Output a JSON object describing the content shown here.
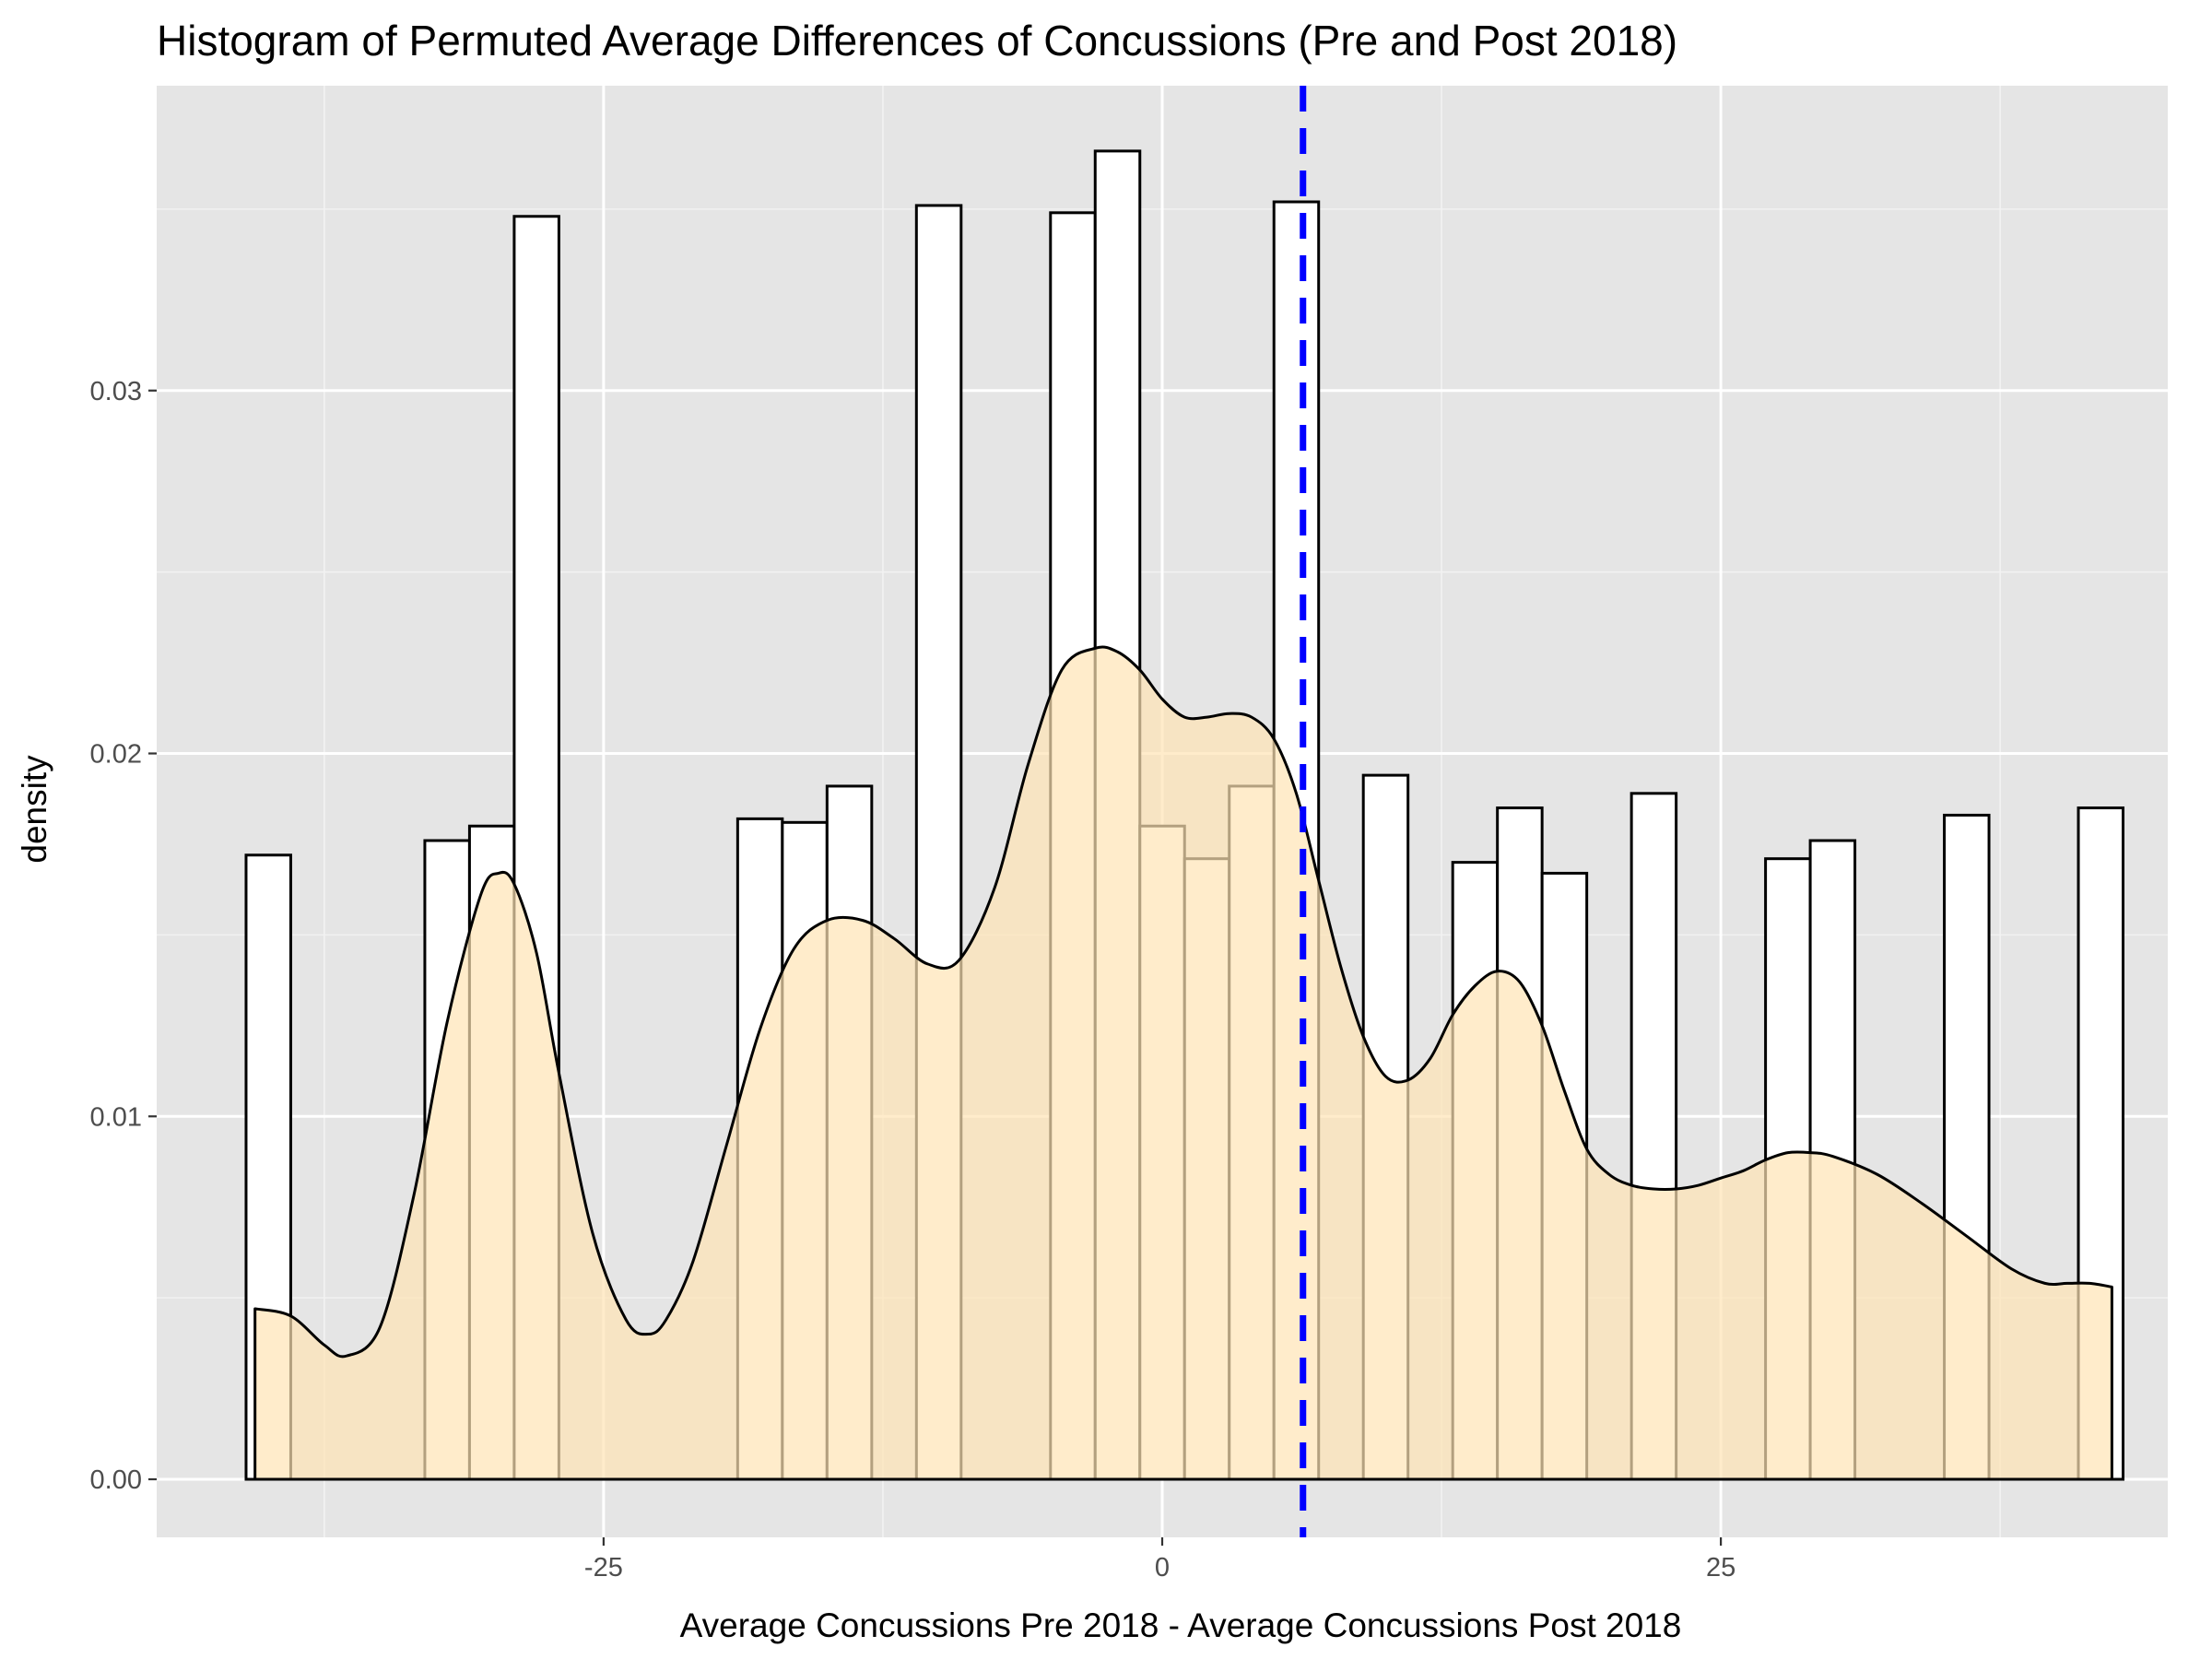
{
  "chart_data": {
    "type": "histogram",
    "title": "Histogram of Permuted Average Differences of Concussions (Pre and Post 2018)",
    "xlabel": "Average Concussions Pre 2018 - Average Concussions Post 2018",
    "ylabel": "density",
    "xlim": [
      -45.0,
      45.0
    ],
    "ylim": [
      -0.0016,
      0.0384
    ],
    "x_ticks": [
      {
        "value": -25,
        "label": "-25"
      },
      {
        "value": 0,
        "label": "0"
      },
      {
        "value": 25,
        "label": "25"
      }
    ],
    "y_ticks": [
      {
        "value": 0.0,
        "label": "0.00"
      },
      {
        "value": 0.01,
        "label": "0.01"
      },
      {
        "value": 0.02,
        "label": "0.02"
      },
      {
        "value": 0.03,
        "label": "0.03"
      }
    ],
    "x_minor_grid": [
      -37.5,
      -12.5,
      12.5,
      37.5
    ],
    "y_minor_grid": [
      0.005,
      0.015,
      0.025,
      0.035
    ],
    "bin_width": 2.0,
    "bins": [
      {
        "x0": -41.0,
        "x1": -39.0,
        "density": 0.0172
      },
      {
        "x0": -33.0,
        "x1": -31.0,
        "density": 0.0176
      },
      {
        "x0": -31.0,
        "x1": -29.0,
        "density": 0.018
      },
      {
        "x0": -29.0,
        "x1": -27.0,
        "density": 0.0348
      },
      {
        "x0": -19.0,
        "x1": -17.0,
        "density": 0.0182
      },
      {
        "x0": -17.0,
        "x1": -15.0,
        "density": 0.0181
      },
      {
        "x0": -15.0,
        "x1": -13.0,
        "density": 0.0191
      },
      {
        "x0": -11.0,
        "x1": -9.0,
        "density": 0.0351
      },
      {
        "x0": -5.0,
        "x1": -3.0,
        "density": 0.0349
      },
      {
        "x0": -3.0,
        "x1": -1.0,
        "density": 0.0366
      },
      {
        "x0": -1.0,
        "x1": 1.0,
        "density": 0.018
      },
      {
        "x0": 1.0,
        "x1": 3.0,
        "density": 0.0171
      },
      {
        "x0": 3.0,
        "x1": 5.0,
        "density": 0.0191
      },
      {
        "x0": 5.0,
        "x1": 7.0,
        "density": 0.0352
      },
      {
        "x0": 9.0,
        "x1": 11.0,
        "density": 0.0194
      },
      {
        "x0": 13.0,
        "x1": 15.0,
        "density": 0.017
      },
      {
        "x0": 15.0,
        "x1": 17.0,
        "density": 0.0185
      },
      {
        "x0": 17.0,
        "x1": 19.0,
        "density": 0.0167
      },
      {
        "x0": 21.0,
        "x1": 23.0,
        "density": 0.0189
      },
      {
        "x0": 27.0,
        "x1": 29.0,
        "density": 0.0171
      },
      {
        "x0": 29.0,
        "x1": 31.0,
        "density": 0.0176
      },
      {
        "x0": 35.0,
        "x1": 37.0,
        "density": 0.0183
      },
      {
        "x0": 41.0,
        "x1": 43.0,
        "density": 0.0185
      }
    ],
    "density_curve": {
      "x": [
        -40.6,
        -39.0,
        -37.5,
        -36.5,
        -35.0,
        -33.5,
        -32.0,
        -30.5,
        -29.7,
        -29.0,
        -28.0,
        -27.0,
        -25.5,
        -24.0,
        -23.0,
        -22.2,
        -21.0,
        -19.5,
        -18.0,
        -16.5,
        -15.0,
        -13.4,
        -12.0,
        -10.5,
        -9.1,
        -7.5,
        -6.0,
        -4.5,
        -3.0,
        -2.0,
        -1.0,
        0.0,
        1.0,
        2.0,
        3.0,
        4.0,
        5.0,
        6.0,
        7.0,
        8.0,
        9.0,
        10.0,
        11.0,
        12.0,
        13.0,
        14.0,
        15.0,
        16.0,
        17.0,
        18.0,
        19.0,
        20.0,
        21.0,
        22.0,
        23.0,
        24.0,
        25.0,
        26.0,
        27.0,
        28.0,
        29.0,
        30.0,
        32.0,
        34.0,
        36.0,
        38.0,
        39.5,
        40.5,
        41.5,
        42.5
      ],
      "y": [
        0.0047,
        0.0045,
        0.0037,
        0.0034,
        0.0042,
        0.0078,
        0.0126,
        0.0161,
        0.0167,
        0.0164,
        0.0145,
        0.0112,
        0.0068,
        0.0044,
        0.004,
        0.0044,
        0.006,
        0.0092,
        0.0124,
        0.0146,
        0.0154,
        0.0154,
        0.0149,
        0.0142,
        0.0143,
        0.0163,
        0.0197,
        0.0223,
        0.0229,
        0.0228,
        0.0223,
        0.0215,
        0.021,
        0.021,
        0.0211,
        0.021,
        0.0204,
        0.0189,
        0.0165,
        0.0141,
        0.0122,
        0.0111,
        0.011,
        0.0116,
        0.0128,
        0.0136,
        0.014,
        0.0137,
        0.0125,
        0.0107,
        0.0091,
        0.0084,
        0.0081,
        0.008,
        0.008,
        0.0081,
        0.0083,
        0.0085,
        0.0088,
        0.009,
        0.009,
        0.0089,
        0.0084,
        0.0076,
        0.0067,
        0.0058,
        0.0054,
        0.0054,
        0.0054,
        0.0053
      ]
    },
    "observed_line": {
      "x": 6.3,
      "style": "dashed",
      "color": "#0000ff"
    },
    "colors": {
      "panel_bg": "#e5e5e5",
      "grid_major": "#ffffff",
      "grid_minor": "#f2f2f2",
      "bar_fill": "#ffffff",
      "bar_stroke": "#000000",
      "density_fill": "#ffe4b5",
      "density_stroke": "#000000",
      "observed_line": "#0000ff"
    }
  }
}
